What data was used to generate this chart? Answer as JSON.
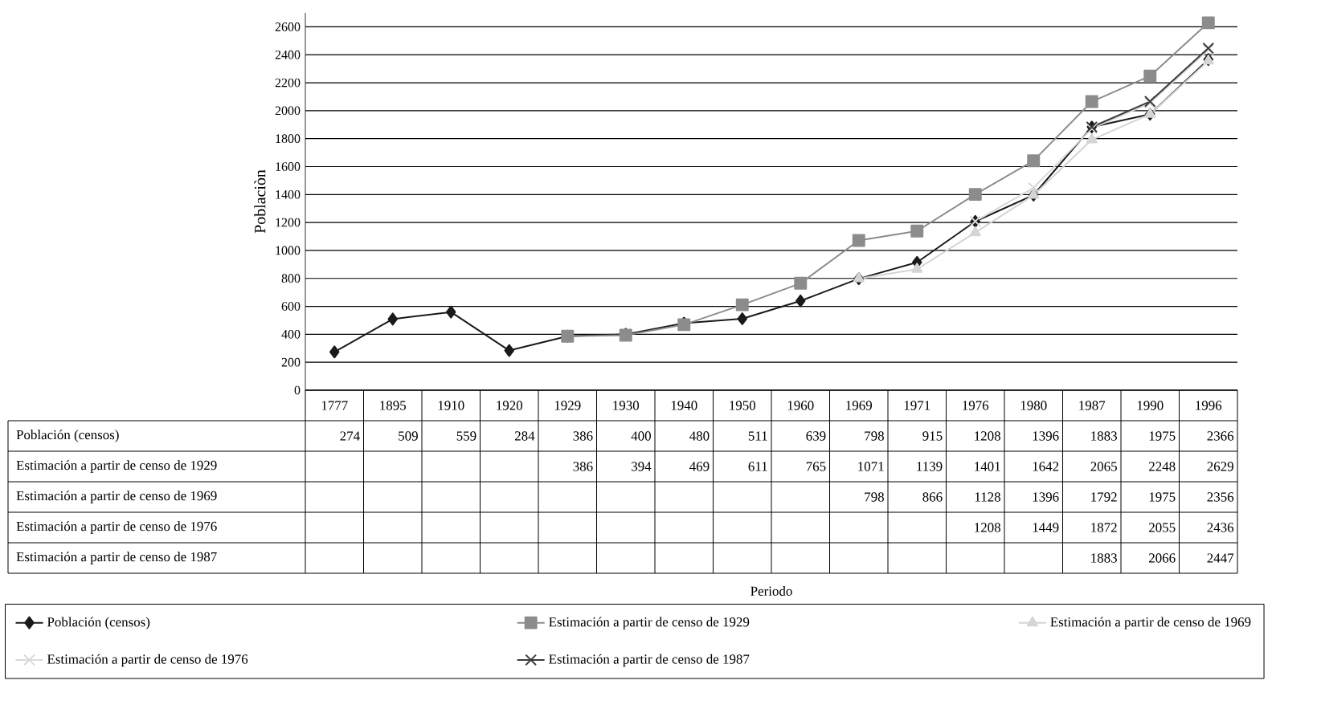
{
  "chart_data": {
    "type": "line",
    "annotations": [
      "Periodo"
    ],
    "ylabel": "Poblaciòn",
    "categories": [
      "1777",
      "1895",
      "1910",
      "1920",
      "1929",
      "1930",
      "1940",
      "1950",
      "1960",
      "1969",
      "1971",
      "1976",
      "1980",
      "1987",
      "1990",
      "1996"
    ],
    "series": [
      {
        "name": "Población (censos)",
        "color": "#1a1a1a",
        "marker": "diamond",
        "values": [
          274,
          509,
          559,
          284,
          386,
          400,
          480,
          511,
          639,
          798,
          915,
          1208,
          1396,
          1883,
          1975,
          2366
        ]
      },
      {
        "name": "Estimación a partir de censo de 1929",
        "color": "#8c8c8c",
        "marker": "square",
        "values": [
          null,
          null,
          null,
          null,
          386,
          394,
          469,
          611,
          765,
          1071,
          1139,
          1401,
          1642,
          2065,
          2248,
          2629
        ]
      },
      {
        "name": "Estimación a partir de censo de 1969",
        "color": "#d4d4d4",
        "marker": "triangle",
        "values": [
          null,
          null,
          null,
          null,
          null,
          null,
          null,
          null,
          null,
          798,
          866,
          1128,
          1396,
          1792,
          1975,
          2356
        ]
      },
      {
        "name": "Estimación a partir de censo de 1976",
        "color": "#d9d9d9",
        "marker": "cross",
        "values": [
          null,
          null,
          null,
          null,
          null,
          null,
          null,
          null,
          null,
          null,
          null,
          1208,
          1449,
          1872,
          2055,
          2436
        ]
      },
      {
        "name": "Estimación a partir de censo de 1987",
        "color": "#3c3c3c",
        "marker": "cross",
        "values": [
          null,
          null,
          null,
          null,
          null,
          null,
          null,
          null,
          null,
          null,
          null,
          null,
          null,
          1883,
          2066,
          2447
        ]
      }
    ],
    "ylim": [
      0,
      2700
    ],
    "yticks": [
      0,
      200,
      400,
      600,
      800,
      1000,
      1200,
      1400,
      1600,
      1800,
      2000,
      2200,
      2400,
      2600
    ],
    "grid": "y",
    "legend": "bottom",
    "data_labels": true
  }
}
